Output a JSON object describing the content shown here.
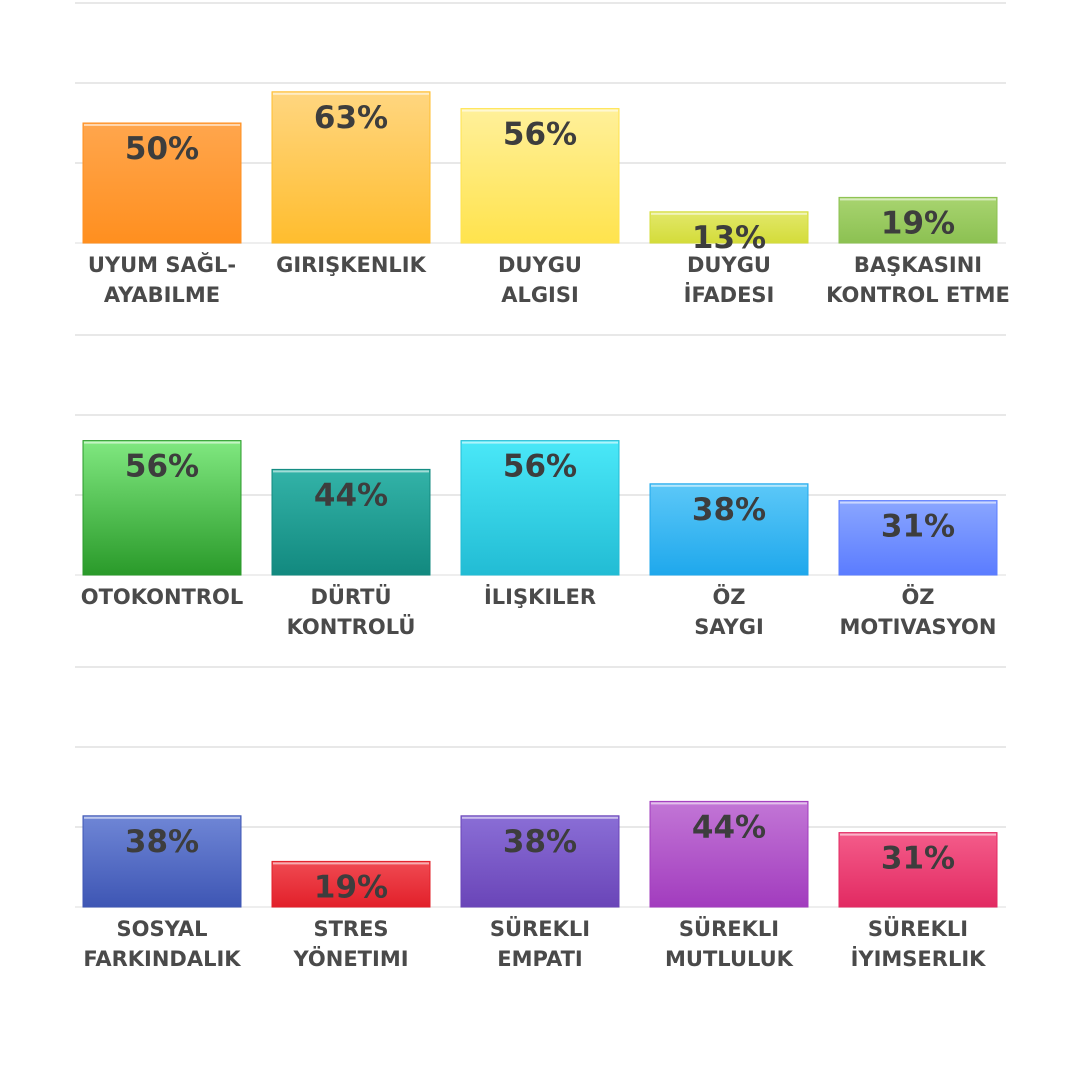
{
  "chart_data": [
    {
      "type": "bar",
      "categories": [
        [
          "UYUM SAĞL-",
          "AYABILME"
        ],
        [
          "GIRIŞKENLIK"
        ],
        [
          "DUYGU",
          "ALGISI"
        ],
        [
          "DUYGU",
          "İFADESI"
        ],
        [
          "BAŞKASINI",
          "KONTROL ETME"
        ]
      ],
      "values": [
        50,
        63,
        56,
        13,
        19
      ],
      "value_labels": [
        "50%",
        "63%",
        "56%",
        "13%",
        "19%"
      ],
      "colors": [
        [
          "#ffa64d",
          "#ff8f1f"
        ],
        [
          "#ffd680",
          "#ffbd2e"
        ],
        [
          "#fff09a",
          "#ffe34d"
        ],
        [
          "#e2e86a",
          "#d4dc3a"
        ],
        [
          "#a8d470",
          "#8cc152"
        ]
      ],
      "ylim": [
        0,
        75
      ]
    },
    {
      "type": "bar",
      "categories": [
        [
          "OTOKONTROL"
        ],
        [
          "DÜRTÜ",
          "KONTROLÜ"
        ],
        [
          "İLIŞKILER"
        ],
        [
          "ÖZ",
          "SAYGI"
        ],
        [
          "ÖZ",
          "MOTIVASYON"
        ]
      ],
      "values": [
        56,
        44,
        56,
        38,
        31
      ],
      "value_labels": [
        "56%",
        "44%",
        "56%",
        "38%",
        "31%"
      ],
      "colors": [
        [
          "#80e880",
          "#2a9a2a"
        ],
        [
          "#33b3a8",
          "#12897f"
        ],
        [
          "#4ae8f8",
          "#22bcd4"
        ],
        [
          "#5cc8f8",
          "#1fa8ec"
        ],
        [
          "#8aa6ff",
          "#5b7cff"
        ]
      ],
      "ylim": [
        0,
        75
      ]
    },
    {
      "type": "bar",
      "categories": [
        [
          "SOSYAL",
          "FARKINDALIK"
        ],
        [
          "STRES",
          "YÖNETIMI"
        ],
        [
          "SÜREKLI",
          "EMPATI"
        ],
        [
          "SÜREKLI",
          "MUTLULUK"
        ],
        [
          "SÜREKLI",
          "İYIMSERLIK"
        ]
      ],
      "values": [
        38,
        19,
        38,
        44,
        31
      ],
      "value_labels": [
        "38%",
        "19%",
        "38%",
        "44%",
        "31%"
      ],
      "colors": [
        [
          "#6f86d6",
          "#3e56b4"
        ],
        [
          "#f04a52",
          "#e2202a"
        ],
        [
          "#8a6ed6",
          "#6a45b8"
        ],
        [
          "#c276d6",
          "#a23cbe"
        ],
        [
          "#f45c8a",
          "#e22a62"
        ]
      ],
      "ylim": [
        0,
        75
      ]
    }
  ]
}
